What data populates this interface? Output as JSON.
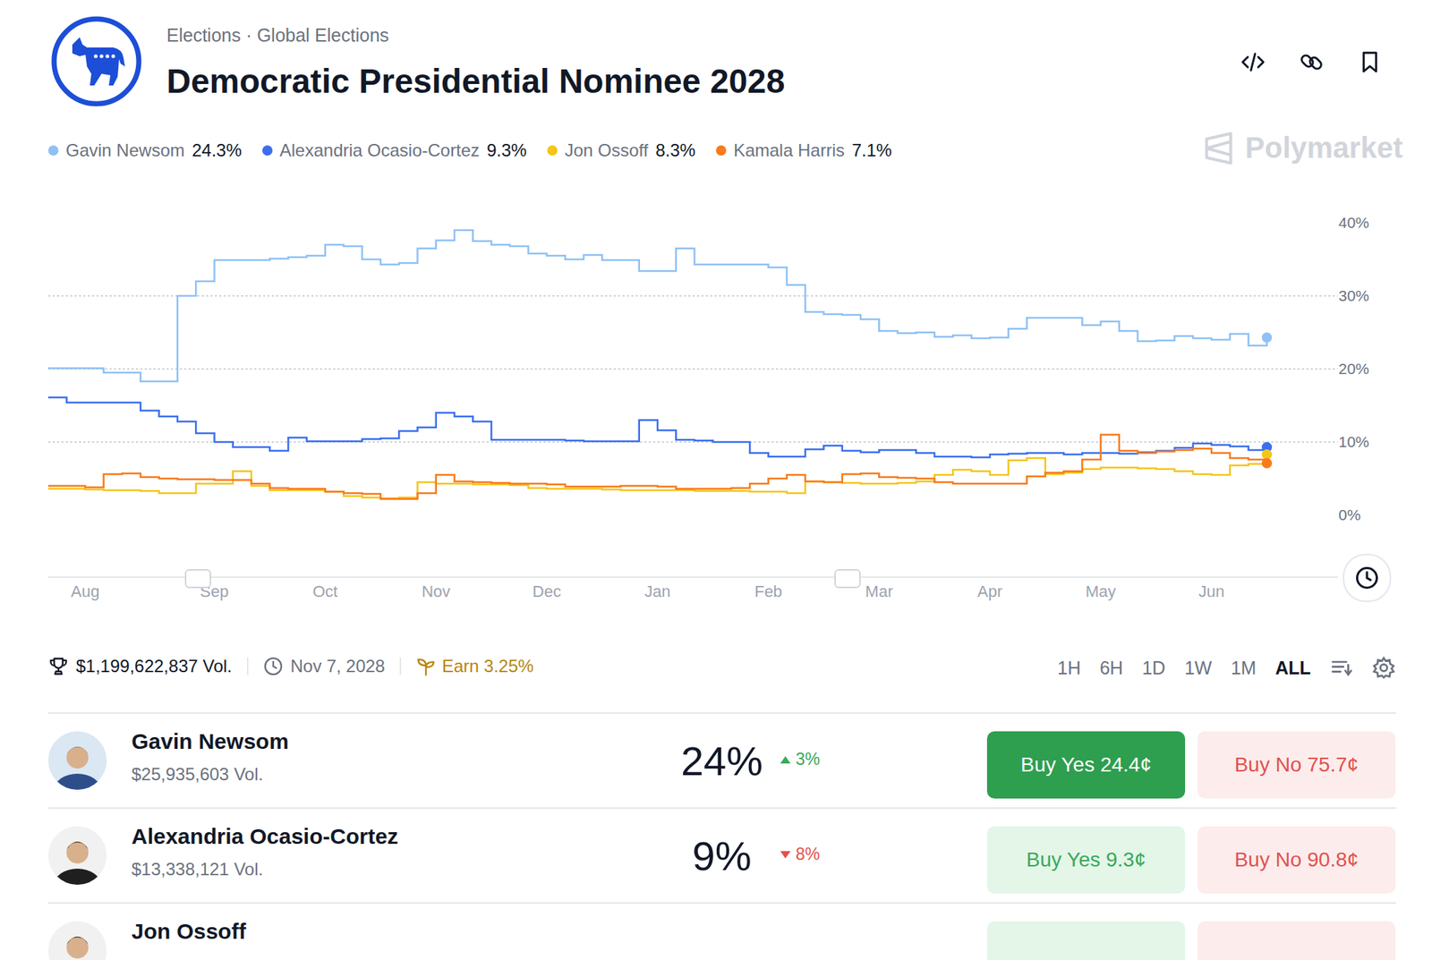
{
  "chart_data": {
    "type": "line",
    "title": "Democratic Presidential Nominee 2028",
    "categories": [
      null,
      null,
      "Aug",
      null,
      null,
      null,
      null,
      null,
      null,
      "Sep",
      null,
      null,
      null,
      null,
      null,
      "Oct",
      null,
      null,
      null,
      null,
      null,
      "Nov",
      null,
      null,
      null,
      null,
      null,
      "Dec",
      null,
      null,
      null,
      null,
      null,
      "Jan",
      null,
      null,
      null,
      null,
      null,
      "Feb",
      null,
      null,
      null,
      null,
      null,
      "Mar",
      null,
      null,
      null,
      null,
      null,
      "Apr",
      null,
      null,
      null,
      null,
      null,
      "May",
      null,
      null,
      null,
      null,
      null,
      "Jun",
      null,
      null,
      null
    ],
    "series": [
      {
        "name": "Gavin Newsom",
        "color": "#8fc1f5",
        "values": [
          20.1,
          20.1,
          20.1,
          19.5,
          19.5,
          18.3,
          18.3,
          30.0,
          32.0,
          34.9,
          34.9,
          34.9,
          35.1,
          35.3,
          35.5,
          37.0,
          36.8,
          35.0,
          34.3,
          34.5,
          36.5,
          37.6,
          39.0,
          37.5,
          37.0,
          36.8,
          35.8,
          35.5,
          35.0,
          35.6,
          34.9,
          34.9,
          33.4,
          33.4,
          36.5,
          34.3,
          34.3,
          34.3,
          34.3,
          33.9,
          31.5,
          27.8,
          27.5,
          27.4,
          26.8,
          25.2,
          24.9,
          25.0,
          24.4,
          24.6,
          24.2,
          24.3,
          25.5,
          27.0,
          27.0,
          27.0,
          26.0,
          26.5,
          25.2,
          23.8,
          23.9,
          24.5,
          24.2,
          24.0,
          24.8,
          23.2,
          24.3
        ]
      },
      {
        "name": "Alexandria Ocasio-Cortez",
        "color": "#3b6ff0",
        "values": [
          16.1,
          15.4,
          15.4,
          15.4,
          15.4,
          14.3,
          13.5,
          12.8,
          11.2,
          10.0,
          9.3,
          9.3,
          8.8,
          10.6,
          10.1,
          10.1,
          10.1,
          10.4,
          10.5,
          11.5,
          12.0,
          14.0,
          13.5,
          12.8,
          10.3,
          10.3,
          10.3,
          10.3,
          10.2,
          10.1,
          10.1,
          10.1,
          13.0,
          11.6,
          10.3,
          10.2,
          10.0,
          10.0,
          8.5,
          8.0,
          8.0,
          9.0,
          9.5,
          8.8,
          8.6,
          8.9,
          8.9,
          8.5,
          8.0,
          8.0,
          7.9,
          8.3,
          8.4,
          8.5,
          8.5,
          8.3,
          8.5,
          8.5,
          8.4,
          8.6,
          8.8,
          9.2,
          9.8,
          9.6,
          9.4,
          8.9,
          9.3
        ]
      },
      {
        "name": "Jon Ossoff",
        "color": "#f5c518",
        "values": [
          3.6,
          3.6,
          3.5,
          3.4,
          3.4,
          3.3,
          3.0,
          3.0,
          4.3,
          4.3,
          6.0,
          4.0,
          3.4,
          3.4,
          3.4,
          3.2,
          2.6,
          2.4,
          2.3,
          2.4,
          4.5,
          4.3,
          4.3,
          4.2,
          4.2,
          4.1,
          3.7,
          3.6,
          3.6,
          3.6,
          3.5,
          3.4,
          3.4,
          3.4,
          3.4,
          3.3,
          3.3,
          3.3,
          3.2,
          3.2,
          3.0,
          4.6,
          4.5,
          4.4,
          4.3,
          4.3,
          4.4,
          4.6,
          5.5,
          6.2,
          6.0,
          5.5,
          7.5,
          7.8,
          5.6,
          5.8,
          6.3,
          6.5,
          6.5,
          6.4,
          6.3,
          6.0,
          5.6,
          5.5,
          6.8,
          7.0,
          8.3
        ]
      },
      {
        "name": "Kamala Harris",
        "color": "#f97a1a",
        "values": [
          4.0,
          4.0,
          3.8,
          5.6,
          5.7,
          5.2,
          5.0,
          4.9,
          4.9,
          4.8,
          4.8,
          4.3,
          3.7,
          3.6,
          3.6,
          3.2,
          3.0,
          2.9,
          2.2,
          2.2,
          3.0,
          5.5,
          4.6,
          4.5,
          4.4,
          4.3,
          4.3,
          4.2,
          3.9,
          3.9,
          3.9,
          4.0,
          4.0,
          3.9,
          3.6,
          3.6,
          3.6,
          3.7,
          4.3,
          5.0,
          5.5,
          4.6,
          4.5,
          5.6,
          5.7,
          5.2,
          5.1,
          5.0,
          4.5,
          4.3,
          4.3,
          4.3,
          4.3,
          5.3,
          5.8,
          6.0,
          7.6,
          11.0,
          8.8,
          8.5,
          8.7,
          8.9,
          9.1,
          8.5,
          7.8,
          7.6,
          7.1
        ]
      }
    ],
    "ylim": [
      0,
      40
    ],
    "yticks": [
      {
        "value": 0,
        "label": "0%"
      },
      {
        "value": 10,
        "label": "10%"
      },
      {
        "value": 20,
        "label": "20%"
      },
      {
        "value": 30,
        "label": "30%"
      },
      {
        "value": 40,
        "label": "40%"
      }
    ],
    "grid": true,
    "line_style": "step",
    "legend": "top"
  },
  "page": {
    "breadcrumb": "Elections · Global Elections",
    "brand": "Polymarket",
    "legend_values": [
      "24.3%",
      "9.3%",
      "8.3%",
      "7.1%"
    ],
    "stats": {
      "volume": "$1,199,622,837 Vol.",
      "end_date": "Nov 7, 2028",
      "earn": "Earn 3.25%"
    },
    "ranges": [
      "1H",
      "6H",
      "1D",
      "1W",
      "1M",
      "ALL"
    ],
    "selected_range": "ALL",
    "outcomes": [
      {
        "name": "Gavin Newsom",
        "volume": "$25,935,603 Vol.",
        "chance": "24%",
        "change": "3%",
        "direction": "up",
        "yes": "Buy Yes 24.4¢",
        "no": "Buy No 75.7¢"
      },
      {
        "name": "Alexandria Ocasio-Cortez",
        "volume": "$13,338,121 Vol.",
        "chance": "9%",
        "change": "8%",
        "direction": "down",
        "yes": "Buy Yes 9.3¢",
        "no": "Buy No 90.8¢"
      },
      {
        "name": "Jon Ossoff"
      }
    ]
  }
}
